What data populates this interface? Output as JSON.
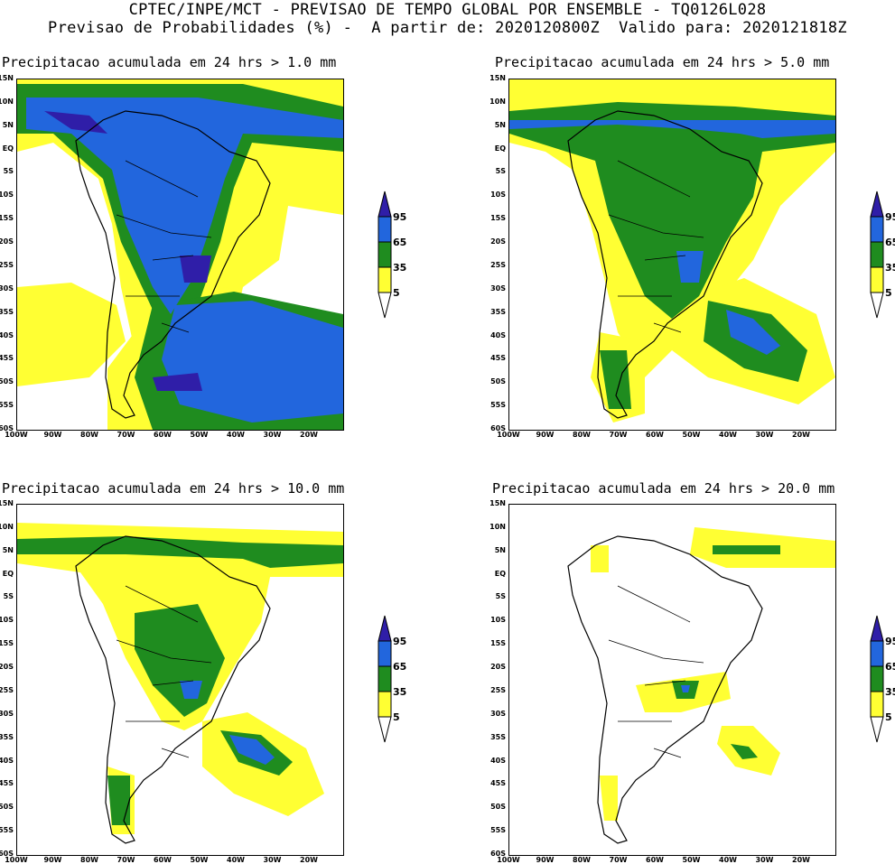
{
  "header": {
    "line1": "CPTEC/INPE/MCT - PREVISAO DE TEMPO GLOBAL POR ENSEMBLE - TQ0126L028",
    "line2": "Previsao de Probabilidades (%) -  A partir de: 2020120800Z  Valido para: 2020121818Z"
  },
  "panels": [
    {
      "title": "Precipitacao acumulada em 24 hrs > 1.0 mm",
      "threshold": "1.0"
    },
    {
      "title": "Precipitacao acumulada em 24 hrs > 5.0 mm",
      "threshold": "5.0"
    },
    {
      "title": "Precipitacao acumulada em 24 hrs > 10.0 mm",
      "threshold": "10.0"
    },
    {
      "title": "Precipitacao acumulada em 24 hrs > 20.0 mm",
      "threshold": "20.0"
    }
  ],
  "lat_labels": [
    "15N",
    "10N",
    "5N",
    "EQ",
    "5S",
    "10S",
    "15S",
    "20S",
    "25S",
    "30S",
    "35S",
    "40S",
    "45S",
    "50S",
    "55S",
    "60S"
  ],
  "lon_labels": [
    "100W",
    "90W",
    "80W",
    "70W",
    "60W",
    "50W",
    "40W",
    "30W",
    "20W"
  ],
  "legend": {
    "labels": [
      "95",
      "65",
      "35",
      "5"
    ],
    "colors": {
      "c5": "#ffff33",
      "c35": "#1f8c1f",
      "c65": "#2266dd",
      "c95": "#2f1ea8"
    }
  }
}
